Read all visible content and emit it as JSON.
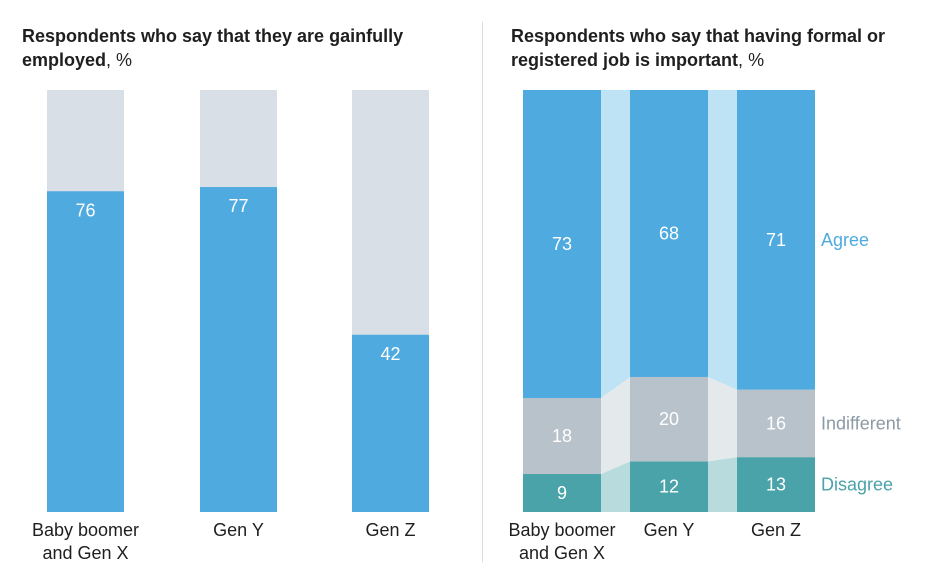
{
  "chart_data": [
    {
      "type": "bar",
      "title": "Respondents who say that they are gainfully employed",
      "unit": "%",
      "categories": [
        [
          "Baby boomer",
          "and Gen X"
        ],
        [
          "Gen Y"
        ],
        [
          "Gen Z"
        ]
      ],
      "values": [
        76,
        77,
        42
      ],
      "ylim": [
        0,
        100
      ],
      "colors": {
        "bar": "#4eaadf",
        "remainder": "#d8dfe6"
      }
    },
    {
      "type": "bar",
      "stacked": true,
      "title": "Respondents who say that having formal or registered job is important",
      "unit": "%",
      "categories": [
        [
          "Baby boomer",
          "and Gen X"
        ],
        [
          "Gen Y"
        ],
        [
          "Gen Z"
        ]
      ],
      "series": [
        {
          "name": "Disagree",
          "values": [
            9,
            12,
            13
          ],
          "color": "#4aa3a8",
          "connector": "#b8dcdd",
          "legend_color": "#4aa3a8"
        },
        {
          "name": "Indifferent",
          "values": [
            18,
            20,
            16
          ],
          "color": "#b7c2ca",
          "connector": "#e4e9ec",
          "legend_color": "#8c9aa5"
        },
        {
          "name": "Agree",
          "values": [
            73,
            68,
            71
          ],
          "color": "#4eaadf",
          "connector": "#bde3f5",
          "legend_color": "#4eaadf"
        }
      ],
      "ylim": [
        0,
        100
      ]
    }
  ]
}
